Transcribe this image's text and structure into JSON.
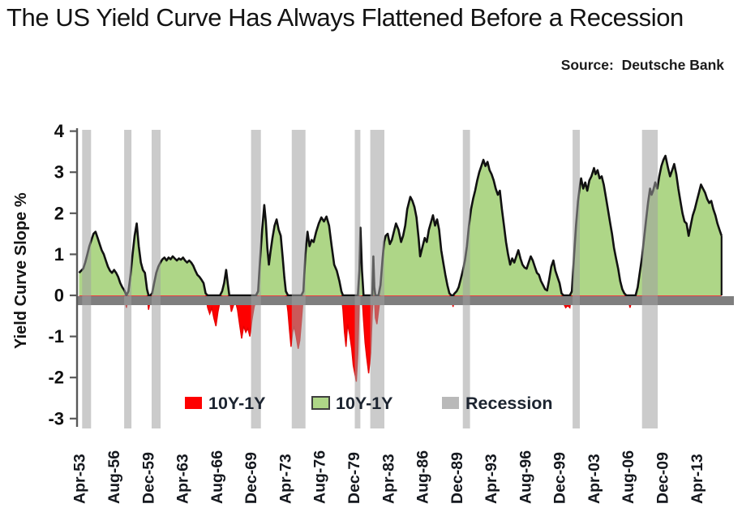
{
  "title": "The US Yield Curve Has Always Flattened Before a Recession",
  "source_label": "Source:  Deutsche Bank",
  "legend": {
    "items": [
      {
        "label": "10Y-1Y",
        "color": "#fe0000",
        "swatch_border": false
      },
      {
        "label": "10Y-1Y",
        "color": "#aed687",
        "swatch_border": true
      },
      {
        "label": "Recession",
        "color": "#b9b9b9",
        "swatch_border": false
      }
    ],
    "text_color": "#1c2430"
  },
  "chart_data": {
    "type": "area",
    "title": "The US Yield Curve Has Always Flattened Before a Recession",
    "xlabel": "",
    "ylabel": "Yield Curve Slope %",
    "ylim": [
      -3,
      4
    ],
    "yticks": [
      "4",
      "3",
      "2",
      "1",
      "0",
      "-1",
      "-2",
      "-3"
    ],
    "ytick_values": [
      4,
      3,
      2,
      1,
      0,
      -1,
      -2,
      -3
    ],
    "x_domain": [
      1953.0,
      2016.85
    ],
    "xtick_labels": [
      "Apr-53",
      "Aug-56",
      "Dec-59",
      "Apr-63",
      "Aug-66",
      "Dec-69",
      "Apr-73",
      "Aug-76",
      "Dec-79",
      "Apr-83",
      "Aug-86",
      "Dec-89",
      "Apr-93",
      "Aug-96",
      "Dec-99",
      "Apr-03",
      "Aug-06",
      "Dec-09",
      "Apr-13"
    ],
    "xtick_years": [
      1953.25,
      1956.58,
      1959.92,
      1963.25,
      1966.58,
      1969.92,
      1973.25,
      1976.58,
      1979.92,
      1983.25,
      1986.58,
      1989.92,
      1993.25,
      1996.58,
      1999.92,
      2003.25,
      2006.58,
      2009.92,
      2013.25
    ],
    "grid": false,
    "legend_position": "inside-bottom",
    "series_positive_name": "10Y-1Y",
    "series_negative_name": "10Y-1Y",
    "recession_name": "Recession",
    "colors": {
      "positive_fill": "#aed687",
      "negative_fill": "#fe0000",
      "negative_edge": "#e60000",
      "line": "#111111",
      "zero_bar": "#7f7f7f",
      "recession_band": "#a0a0a0",
      "axis": "#595959",
      "tick_label": "#101010",
      "x_label": "#15181e"
    },
    "recessions": [
      [
        1953.5,
        1954.37
      ],
      [
        1957.58,
        1958.29
      ],
      [
        1960.25,
        1961.12
      ],
      [
        1969.92,
        1970.87
      ],
      [
        1973.87,
        1975.2
      ],
      [
        1980.0,
        1980.54
      ],
      [
        1981.5,
        1982.87
      ],
      [
        1990.5,
        1991.2
      ],
      [
        2001.17,
        2001.87
      ],
      [
        2007.92,
        2009.45
      ]
    ],
    "points": [
      [
        1953.2,
        0.55
      ],
      [
        1953.4,
        0.6
      ],
      [
        1953.6,
        0.65
      ],
      [
        1953.8,
        0.8
      ],
      [
        1954.0,
        1.0
      ],
      [
        1954.2,
        1.2
      ],
      [
        1954.4,
        1.35
      ],
      [
        1954.6,
        1.5
      ],
      [
        1954.8,
        1.55
      ],
      [
        1955.0,
        1.4
      ],
      [
        1955.2,
        1.25
      ],
      [
        1955.4,
        1.1
      ],
      [
        1955.6,
        1.0
      ],
      [
        1955.8,
        0.85
      ],
      [
        1956.0,
        0.7
      ],
      [
        1956.2,
        0.6
      ],
      [
        1956.4,
        0.55
      ],
      [
        1956.6,
        0.62
      ],
      [
        1956.8,
        0.55
      ],
      [
        1957.0,
        0.45
      ],
      [
        1957.2,
        0.3
      ],
      [
        1957.4,
        0.2
      ],
      [
        1957.6,
        0.12
      ],
      [
        1957.8,
        -0.3
      ],
      [
        1958.0,
        0.1
      ],
      [
        1958.2,
        0.5
      ],
      [
        1958.4,
        1.0
      ],
      [
        1958.6,
        1.45
      ],
      [
        1958.8,
        1.75
      ],
      [
        1959.0,
        1.2
      ],
      [
        1959.2,
        0.8
      ],
      [
        1959.4,
        0.62
      ],
      [
        1959.6,
        0.55
      ],
      [
        1959.8,
        0.15
      ],
      [
        1959.95,
        -0.35
      ],
      [
        1960.1,
        -0.15
      ],
      [
        1960.3,
        0.05
      ],
      [
        1960.5,
        0.3
      ],
      [
        1960.7,
        0.55
      ],
      [
        1960.9,
        0.7
      ],
      [
        1961.1,
        0.8
      ],
      [
        1961.3,
        0.88
      ],
      [
        1961.5,
        0.92
      ],
      [
        1961.7,
        0.85
      ],
      [
        1961.9,
        0.92
      ],
      [
        1962.1,
        0.88
      ],
      [
        1962.3,
        0.95
      ],
      [
        1962.5,
        0.9
      ],
      [
        1962.7,
        0.85
      ],
      [
        1962.9,
        0.9
      ],
      [
        1963.1,
        0.87
      ],
      [
        1963.3,
        0.92
      ],
      [
        1963.5,
        0.85
      ],
      [
        1963.7,
        0.8
      ],
      [
        1963.9,
        0.85
      ],
      [
        1964.1,
        0.8
      ],
      [
        1964.3,
        0.72
      ],
      [
        1964.5,
        0.6
      ],
      [
        1964.7,
        0.5
      ],
      [
        1964.9,
        0.45
      ],
      [
        1965.1,
        0.38
      ],
      [
        1965.3,
        0.3
      ],
      [
        1965.5,
        0.05
      ],
      [
        1965.7,
        -0.3
      ],
      [
        1965.9,
        -0.45
      ],
      [
        1966.1,
        -0.3
      ],
      [
        1966.3,
        -0.55
      ],
      [
        1966.5,
        -0.75
      ],
      [
        1966.7,
        -0.4
      ],
      [
        1966.9,
        -0.15
      ],
      [
        1967.1,
        0.1
      ],
      [
        1967.3,
        0.3
      ],
      [
        1967.5,
        0.62
      ],
      [
        1967.65,
        0.3
      ],
      [
        1967.8,
        -0.05
      ],
      [
        1968.0,
        -0.4
      ],
      [
        1968.2,
        -0.25
      ],
      [
        1968.4,
        -0.15
      ],
      [
        1968.6,
        -0.35
      ],
      [
        1968.8,
        -0.7
      ],
      [
        1969.0,
        -1.05
      ],
      [
        1969.2,
        -0.75
      ],
      [
        1969.4,
        -0.9
      ],
      [
        1969.6,
        -0.8
      ],
      [
        1969.8,
        -1.0
      ],
      [
        1970.0,
        -0.6
      ],
      [
        1970.2,
        -0.3
      ],
      [
        1970.4,
        -0.1
      ],
      [
        1970.6,
        0.1
      ],
      [
        1970.8,
        0.9
      ],
      [
        1971.0,
        1.6
      ],
      [
        1971.2,
        2.2
      ],
      [
        1971.35,
        1.8
      ],
      [
        1971.5,
        1.15
      ],
      [
        1971.65,
        0.75
      ],
      [
        1971.8,
        1.05
      ],
      [
        1972.0,
        1.4
      ],
      [
        1972.2,
        1.7
      ],
      [
        1972.4,
        1.85
      ],
      [
        1972.6,
        1.6
      ],
      [
        1972.8,
        1.45
      ],
      [
        1973.0,
        0.9
      ],
      [
        1973.15,
        0.45
      ],
      [
        1973.3,
        0.1
      ],
      [
        1973.5,
        -0.4
      ],
      [
        1973.65,
        -0.85
      ],
      [
        1973.8,
        -1.25
      ],
      [
        1973.95,
        -0.9
      ],
      [
        1974.1,
        -0.75
      ],
      [
        1974.3,
        -1.0
      ],
      [
        1974.5,
        -1.3
      ],
      [
        1974.65,
        -1.1
      ],
      [
        1974.8,
        -0.65
      ],
      [
        1975.0,
        0.1
      ],
      [
        1975.2,
        1.0
      ],
      [
        1975.4,
        1.55
      ],
      [
        1975.6,
        1.2
      ],
      [
        1975.8,
        1.35
      ],
      [
        1976.0,
        1.3
      ],
      [
        1976.25,
        1.55
      ],
      [
        1976.5,
        1.75
      ],
      [
        1976.75,
        1.9
      ],
      [
        1977.0,
        1.8
      ],
      [
        1977.25,
        1.92
      ],
      [
        1977.5,
        1.7
      ],
      [
        1977.75,
        1.2
      ],
      [
        1978.0,
        0.75
      ],
      [
        1978.25,
        0.6
      ],
      [
        1978.5,
        0.35
      ],
      [
        1978.7,
        0.1
      ],
      [
        1978.85,
        -0.35
      ],
      [
        1979.0,
        -0.9
      ],
      [
        1979.15,
        -1.25
      ],
      [
        1979.3,
        -0.7
      ],
      [
        1979.5,
        -0.95
      ],
      [
        1979.7,
        -1.3
      ],
      [
        1979.85,
        -1.7
      ],
      [
        1980.0,
        -1.9
      ],
      [
        1980.15,
        -2.1
      ],
      [
        1980.3,
        -1.4
      ],
      [
        1980.45,
        0.6
      ],
      [
        1980.55,
        1.65
      ],
      [
        1980.7,
        0.6
      ],
      [
        1980.85,
        -0.6
      ],
      [
        1981.0,
        -1.15
      ],
      [
        1981.15,
        -1.5
      ],
      [
        1981.35,
        -1.9
      ],
      [
        1981.55,
        -1.4
      ],
      [
        1981.7,
        -0.4
      ],
      [
        1981.8,
        0.95
      ],
      [
        1981.9,
        0.2
      ],
      [
        1982.0,
        -0.55
      ],
      [
        1982.15,
        -0.7
      ],
      [
        1982.3,
        -0.4
      ],
      [
        1982.5,
        0.25
      ],
      [
        1982.7,
        0.9
      ],
      [
        1982.85,
        1.3
      ],
      [
        1983.0,
        1.45
      ],
      [
        1983.2,
        1.5
      ],
      [
        1983.4,
        1.25
      ],
      [
        1983.6,
        1.35
      ],
      [
        1983.8,
        1.55
      ],
      [
        1984.0,
        1.75
      ],
      [
        1984.25,
        1.6
      ],
      [
        1984.5,
        1.3
      ],
      [
        1984.7,
        1.45
      ],
      [
        1984.9,
        1.7
      ],
      [
        1985.1,
        2.1
      ],
      [
        1985.4,
        2.4
      ],
      [
        1985.6,
        2.3
      ],
      [
        1985.8,
        2.15
      ],
      [
        1986.0,
        1.9
      ],
      [
        1986.2,
        1.4
      ],
      [
        1986.35,
        0.95
      ],
      [
        1986.6,
        1.2
      ],
      [
        1986.8,
        1.4
      ],
      [
        1987.0,
        1.3
      ],
      [
        1987.2,
        1.6
      ],
      [
        1987.6,
        1.95
      ],
      [
        1987.8,
        1.7
      ],
      [
        1988.0,
        1.85
      ],
      [
        1988.2,
        1.6
      ],
      [
        1988.4,
        1.1
      ],
      [
        1988.6,
        0.8
      ],
      [
        1988.8,
        0.5
      ],
      [
        1989.0,
        0.25
      ],
      [
        1989.2,
        0.05
      ],
      [
        1989.4,
        -0.05
      ],
      [
        1989.55,
        -0.28
      ],
      [
        1989.7,
        0.05
      ],
      [
        1989.9,
        0.1
      ],
      [
        1990.1,
        0.2
      ],
      [
        1990.3,
        0.4
      ],
      [
        1990.5,
        0.6
      ],
      [
        1990.7,
        0.85
      ],
      [
        1990.9,
        1.2
      ],
      [
        1991.1,
        1.7
      ],
      [
        1991.3,
        2.1
      ],
      [
        1991.5,
        2.35
      ],
      [
        1991.7,
        2.55
      ],
      [
        1991.9,
        2.8
      ],
      [
        1992.1,
        3.0
      ],
      [
        1992.3,
        3.15
      ],
      [
        1992.5,
        3.3
      ],
      [
        1992.7,
        3.15
      ],
      [
        1992.9,
        3.25
      ],
      [
        1993.1,
        3.05
      ],
      [
        1993.3,
        2.95
      ],
      [
        1993.5,
        2.8
      ],
      [
        1993.7,
        2.6
      ],
      [
        1993.9,
        2.45
      ],
      [
        1994.1,
        2.55
      ],
      [
        1994.3,
        2.1
      ],
      [
        1994.5,
        1.7
      ],
      [
        1994.7,
        1.3
      ],
      [
        1994.9,
        1.0
      ],
      [
        1995.1,
        0.75
      ],
      [
        1995.3,
        0.9
      ],
      [
        1995.5,
        0.8
      ],
      [
        1995.7,
        0.95
      ],
      [
        1995.9,
        1.1
      ],
      [
        1996.1,
        0.9
      ],
      [
        1996.3,
        0.75
      ],
      [
        1996.5,
        0.68
      ],
      [
        1996.7,
        0.65
      ],
      [
        1996.9,
        0.8
      ],
      [
        1997.1,
        0.95
      ],
      [
        1997.3,
        0.85
      ],
      [
        1997.5,
        0.7
      ],
      [
        1997.7,
        0.55
      ],
      [
        1997.9,
        0.5
      ],
      [
        1998.1,
        0.35
      ],
      [
        1998.3,
        0.25
      ],
      [
        1998.5,
        0.15
      ],
      [
        1998.7,
        0.12
      ],
      [
        1998.9,
        0.4
      ],
      [
        1999.1,
        0.7
      ],
      [
        1999.3,
        0.85
      ],
      [
        1999.5,
        0.6
      ],
      [
        1999.7,
        0.45
      ],
      [
        1999.9,
        0.3
      ],
      [
        2000.1,
        0.05
      ],
      [
        2000.3,
        -0.2
      ],
      [
        2000.5,
        -0.3
      ],
      [
        2000.7,
        -0.25
      ],
      [
        2000.9,
        -0.3
      ],
      [
        2001.1,
        0.1
      ],
      [
        2001.3,
        0.9
      ],
      [
        2001.5,
        1.7
      ],
      [
        2001.7,
        2.3
      ],
      [
        2001.9,
        2.7
      ],
      [
        2002.0,
        2.85
      ],
      [
        2002.2,
        2.6
      ],
      [
        2002.4,
        2.75
      ],
      [
        2002.6,
        2.55
      ],
      [
        2002.8,
        2.8
      ],
      [
        2003.0,
        2.9
      ],
      [
        2003.25,
        3.1
      ],
      [
        2003.4,
        2.95
      ],
      [
        2003.6,
        3.05
      ],
      [
        2003.8,
        2.85
      ],
      [
        2004.0,
        2.9
      ],
      [
        2004.2,
        2.7
      ],
      [
        2004.4,
        2.4
      ],
      [
        2004.6,
        2.1
      ],
      [
        2004.8,
        1.8
      ],
      [
        2005.0,
        1.5
      ],
      [
        2005.2,
        1.15
      ],
      [
        2005.4,
        0.9
      ],
      [
        2005.6,
        0.65
      ],
      [
        2005.8,
        0.35
      ],
      [
        2006.0,
        0.15
      ],
      [
        2006.2,
        0.05
      ],
      [
        2006.4,
        -0.05
      ],
      [
        2006.6,
        -0.15
      ],
      [
        2006.75,
        -0.3
      ],
      [
        2006.9,
        -0.15
      ],
      [
        2007.1,
        -0.1
      ],
      [
        2007.3,
        0.0
      ],
      [
        2007.5,
        0.2
      ],
      [
        2007.7,
        0.55
      ],
      [
        2007.9,
        0.9
      ],
      [
        2008.1,
        1.35
      ],
      [
        2008.3,
        1.8
      ],
      [
        2008.5,
        2.25
      ],
      [
        2008.7,
        2.6
      ],
      [
        2008.85,
        2.45
      ],
      [
        2009.0,
        2.55
      ],
      [
        2009.2,
        2.75
      ],
      [
        2009.4,
        2.6
      ],
      [
        2009.6,
        2.9
      ],
      [
        2009.8,
        3.15
      ],
      [
        2010.0,
        3.3
      ],
      [
        2010.2,
        3.4
      ],
      [
        2010.45,
        3.1
      ],
      [
        2010.65,
        2.9
      ],
      [
        2010.85,
        3.05
      ],
      [
        2011.05,
        3.2
      ],
      [
        2011.25,
        2.95
      ],
      [
        2011.45,
        2.6
      ],
      [
        2011.65,
        2.3
      ],
      [
        2011.85,
        2.0
      ],
      [
        2012.05,
        1.8
      ],
      [
        2012.25,
        1.75
      ],
      [
        2012.45,
        1.45
      ],
      [
        2012.65,
        1.7
      ],
      [
        2012.85,
        1.95
      ],
      [
        2013.05,
        2.1
      ],
      [
        2013.25,
        2.3
      ],
      [
        2013.45,
        2.5
      ],
      [
        2013.65,
        2.7
      ],
      [
        2013.85,
        2.6
      ],
      [
        2014.05,
        2.5
      ],
      [
        2014.25,
        2.35
      ],
      [
        2014.45,
        2.25
      ],
      [
        2014.65,
        2.3
      ],
      [
        2014.85,
        2.1
      ],
      [
        2015.05,
        1.95
      ],
      [
        2015.25,
        1.75
      ],
      [
        2015.45,
        1.6
      ],
      [
        2015.65,
        1.45
      ]
    ]
  }
}
